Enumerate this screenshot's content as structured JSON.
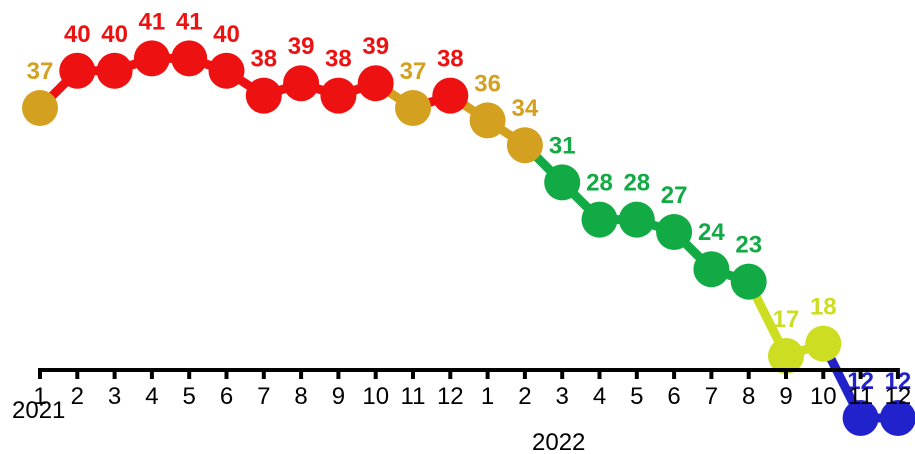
{
  "chart_data": {
    "type": "line",
    "x_tick_labels": [
      "1",
      "2",
      "3",
      "4",
      "5",
      "6",
      "7",
      "8",
      "9",
      "10",
      "11",
      "12",
      "1",
      "2",
      "3",
      "4",
      "5",
      "6",
      "7",
      "8",
      "9",
      "10",
      "11",
      "12"
    ],
    "year_labels": [
      "2021",
      "2022"
    ],
    "values": [
      37,
      40,
      40,
      41,
      41,
      40,
      38,
      39,
      38,
      39,
      37,
      38,
      36,
      34,
      31,
      28,
      28,
      27,
      24,
      23,
      17,
      18,
      12,
      12
    ],
    "point_color_keys": [
      "gold",
      "red",
      "red",
      "red",
      "red",
      "red",
      "red",
      "red",
      "red",
      "red",
      "gold",
      "red",
      "gold",
      "gold",
      "green",
      "green",
      "green",
      "green",
      "green",
      "green",
      "yellow",
      "yellow",
      "blue",
      "blue"
    ],
    "colors": {
      "red": "#ee1111",
      "gold": "#d4a020",
      "green": "#11aa44",
      "yellow": "#ccdd22",
      "blue": "#2222cc"
    },
    "ylim": [
      10,
      43
    ],
    "title": "",
    "xlabel": "",
    "ylabel": "",
    "grid": false,
    "legend": "none"
  }
}
